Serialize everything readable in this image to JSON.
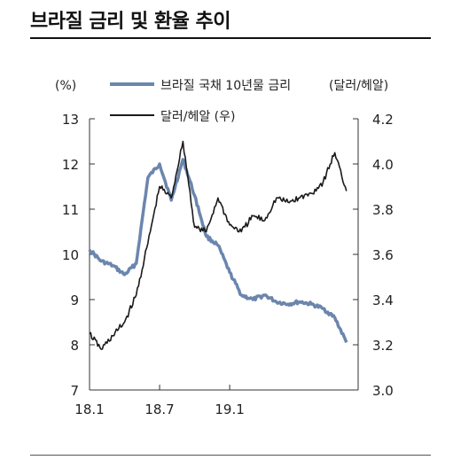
{
  "title": "브라질 금리 및 환율 추이",
  "chart_data": {
    "type": "line",
    "left_unit": "(%)",
    "right_unit": "(달러/헤알)",
    "left_ylim": [
      7,
      13
    ],
    "right_ylim": [
      3.0,
      4.2
    ],
    "left_ticks": [
      "13",
      "12",
      "11",
      "10",
      "9",
      "8",
      "7"
    ],
    "right_ticks": [
      "4.2",
      "4.0",
      "3.8",
      "3.6",
      "3.4",
      "3.2",
      "3.0"
    ],
    "x_ticks": [
      "18.1",
      "18.7",
      "19.1"
    ],
    "xlim": [
      "2018-01",
      "2019-12"
    ],
    "legend": [
      {
        "name": "브라질 국채 10년물 금리",
        "axis": "left",
        "color": "#6b86ad"
      },
      {
        "name": "달러/헤알 (우)",
        "axis": "right",
        "color": "#1a1a1a"
      }
    ],
    "series": [
      {
        "name": "브라질 국채 10년물 금리",
        "axis": "left",
        "color": "#6b86ad",
        "x": [
          "2018-01",
          "2018-02",
          "2018-03",
          "2018-04",
          "2018-05",
          "2018-06",
          "2018-07",
          "2018-08",
          "2018-09",
          "2018-10",
          "2018-11",
          "2018-12",
          "2019-01",
          "2019-02",
          "2019-03",
          "2019-04",
          "2019-05",
          "2019-06",
          "2019-07",
          "2019-08",
          "2019-09",
          "2019-10",
          "2019-11"
        ],
        "values": [
          10.1,
          9.85,
          9.75,
          9.55,
          9.8,
          11.7,
          12.0,
          11.2,
          12.1,
          11.3,
          10.4,
          10.2,
          9.6,
          9.1,
          9.0,
          9.1,
          8.95,
          8.9,
          8.95,
          8.9,
          8.8,
          8.6,
          8.05
        ]
      },
      {
        "name": "달러/헤알 (우)",
        "axis": "right",
        "color": "#1a1a1a",
        "x": [
          "2018-01",
          "2018-02",
          "2018-03",
          "2018-04",
          "2018-05",
          "2018-06",
          "2018-07",
          "2018-08",
          "2018-09",
          "2018-10",
          "2018-11",
          "2018-12",
          "2019-01",
          "2019-02",
          "2019-03",
          "2019-04",
          "2019-05",
          "2019-06",
          "2019-07",
          "2019-08",
          "2019-09",
          "2019-10",
          "2019-11"
        ],
        "values": [
          3.25,
          3.18,
          3.24,
          3.3,
          3.42,
          3.65,
          3.9,
          3.85,
          4.1,
          3.72,
          3.7,
          3.85,
          3.73,
          3.7,
          3.77,
          3.75,
          3.85,
          3.83,
          3.85,
          3.87,
          3.92,
          4.05,
          3.88
        ]
      }
    ]
  }
}
